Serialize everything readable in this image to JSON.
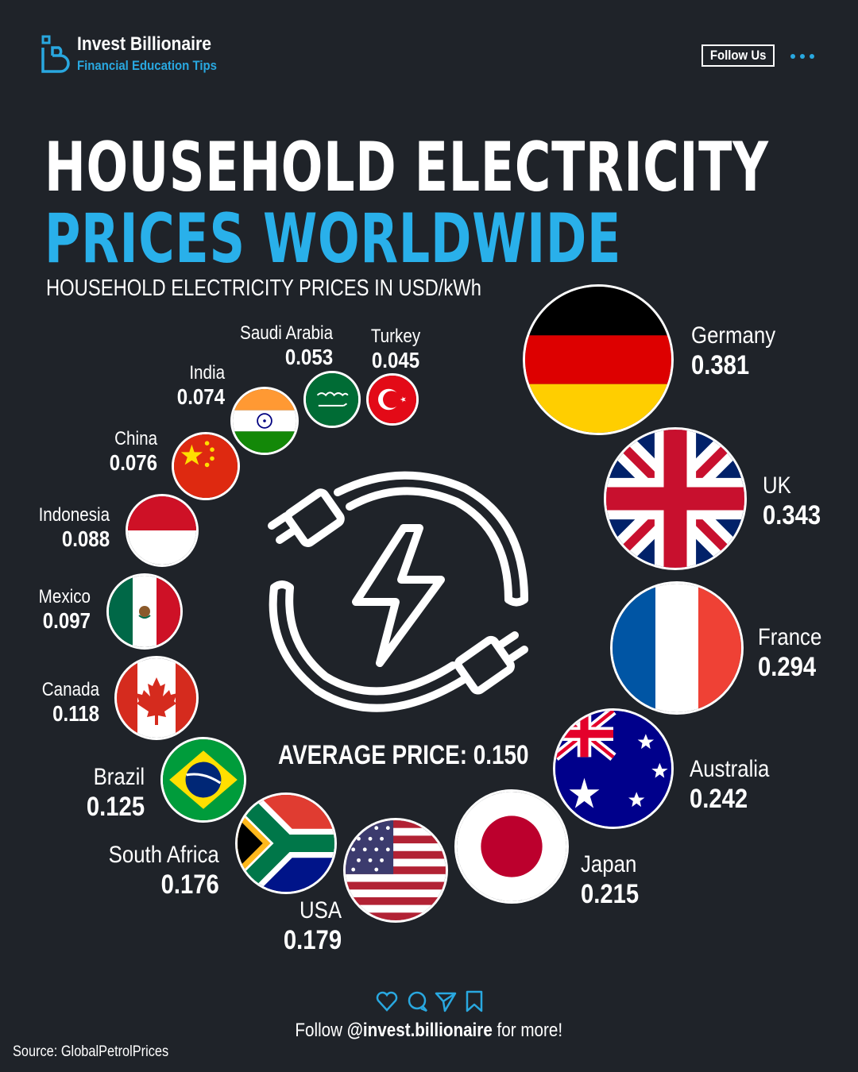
{
  "header": {
    "brand": "Invest Billionaire",
    "tagline": "Financial Education Tips",
    "follow_label": "Follow Us",
    "more_icon": "more-dots-icon",
    "accent": "#29b0ea"
  },
  "title": {
    "line1": "HOUSEHOLD ELECTRICITY",
    "line2": "PRICES WORLDWIDE",
    "subtitle": "HOUSEHOLD ELECTRICITY PRICES IN USD/kWh"
  },
  "average": {
    "label": "AVERAGE PRICE: 0.150"
  },
  "countries": [
    {
      "name": "Germany",
      "value": "0.381"
    },
    {
      "name": "UK",
      "value": "0.343"
    },
    {
      "name": "France",
      "value": "0.294"
    },
    {
      "name": "Australia",
      "value": "0.242"
    },
    {
      "name": "Japan",
      "value": "0.215"
    },
    {
      "name": "USA",
      "value": "0.179"
    },
    {
      "name": "South Africa",
      "value": "0.176"
    },
    {
      "name": "Brazil",
      "value": "0.125"
    },
    {
      "name": "Canada",
      "value": "0.118"
    },
    {
      "name": "Mexico",
      "value": "0.097"
    },
    {
      "name": "Indonesia",
      "value": "0.088"
    },
    {
      "name": "China",
      "value": "0.076"
    },
    {
      "name": "India",
      "value": "0.074"
    },
    {
      "name": "Saudi Arabia",
      "value": "0.053"
    },
    {
      "name": "Turkey",
      "value": "0.045"
    }
  ],
  "footer": {
    "follow_prefix": "Follow ",
    "handle": "@invest.billionaire",
    "follow_suffix": " for more!",
    "source": "Source: GlobalPetrolPrices",
    "icons": [
      "heart-icon",
      "comment-icon",
      "share-icon",
      "bookmark-icon"
    ]
  }
}
